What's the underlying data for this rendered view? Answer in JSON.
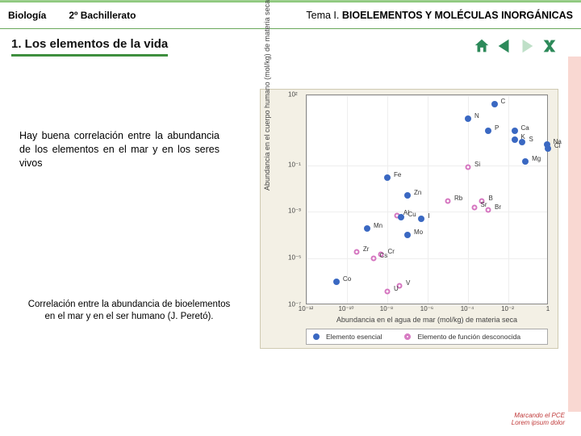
{
  "colors": {
    "accent": "#7bbf6a",
    "accent_dark": "#3e8f3e",
    "nav_icon": "#2d8a5a",
    "border_top": "#9ccf8d",
    "border_bottom": "#6aa85b",
    "pink": "#f9d8d2",
    "essential": "#3a68c2",
    "unknown": "#d576c0"
  },
  "header": {
    "subject": "Biología",
    "level": "2º Bachillerato",
    "topic_prefix": "Tema I. ",
    "topic_title": "BIOELEMENTOS Y MOLÉCULAS INORGÁNICAS"
  },
  "section_title": "1. Los elementos de la vida",
  "body_text": "Hay buena correlación entre la abundancia de los elementos en el mar y en los seres vivos",
  "caption": "Correlación entre la abundancia de bioelementos en el mar y en el ser humano (J. Peretó).",
  "footer": "Marcando el PCE\nLorem ipsum dolor",
  "chart": {
    "type": "scatter",
    "background": "#f3f0e5",
    "plot_bg": "#ffffff",
    "xlabel": "Abundancia en el agua de mar (mol/kg) de materia seca",
    "ylabel": "Abundancia en el cuerpo humano (mol/kg) de materia seca",
    "xlog": true,
    "ylog": true,
    "xlim": [
      1e-12,
      1
    ],
    "ylim": [
      1e-07,
      100
    ],
    "xticks": [
      "10⁻¹²",
      "10⁻¹⁰",
      "10⁻⁸",
      "10⁻⁶",
      "10⁻⁴",
      "10⁻²",
      "1"
    ],
    "yticks": [
      "10⁻⁷",
      "10⁻⁵",
      "10⁻³",
      "10⁻¹",
      "10²"
    ],
    "legend": {
      "essential": "Elemento esencial",
      "unknown": "Elemento de función desconocida"
    },
    "points": [
      {
        "el": "C",
        "x": 0.002,
        "y": 40,
        "cat": "essential"
      },
      {
        "el": "N",
        "x": 0.0001,
        "y": 10,
        "cat": "essential"
      },
      {
        "el": "Ca",
        "x": 0.02,
        "y": 3,
        "cat": "essential"
      },
      {
        "el": "P",
        "x": 0.001,
        "y": 3,
        "cat": "essential"
      },
      {
        "el": "S",
        "x": 0.05,
        "y": 1,
        "cat": "essential"
      },
      {
        "el": "K",
        "x": 0.02,
        "y": 1.2,
        "cat": "essential"
      },
      {
        "el": "Na",
        "x": 0.8,
        "y": 0.8,
        "cat": "essential"
      },
      {
        "el": "Cl",
        "x": 0.9,
        "y": 0.5,
        "cat": "essential"
      },
      {
        "el": "Mg",
        "x": 0.07,
        "y": 0.15,
        "cat": "essential"
      },
      {
        "el": "Si",
        "x": 0.0001,
        "y": 0.08,
        "cat": "unknown"
      },
      {
        "el": "Fe",
        "x": 1e-08,
        "y": 0.03,
        "cat": "essential"
      },
      {
        "el": "Zn",
        "x": 1e-07,
        "y": 0.005,
        "cat": "essential"
      },
      {
        "el": "Rb",
        "x": 1e-05,
        "y": 0.003,
        "cat": "unknown"
      },
      {
        "el": "B",
        "x": 0.0005,
        "y": 0.003,
        "cat": "unknown"
      },
      {
        "el": "Sr",
        "x": 0.0002,
        "y": 0.0015,
        "cat": "unknown"
      },
      {
        "el": "Br",
        "x": 0.001,
        "y": 0.0012,
        "cat": "unknown"
      },
      {
        "el": "Al",
        "x": 3e-08,
        "y": 0.0007,
        "cat": "unknown"
      },
      {
        "el": "Cu",
        "x": 5e-08,
        "y": 0.0006,
        "cat": "essential"
      },
      {
        "el": "I",
        "x": 5e-07,
        "y": 0.0005,
        "cat": "essential"
      },
      {
        "el": "Mn",
        "x": 1e-09,
        "y": 0.0002,
        "cat": "essential"
      },
      {
        "el": "Mo",
        "x": 1e-07,
        "y": 0.0001,
        "cat": "essential"
      },
      {
        "el": "Zr",
        "x": 3e-10,
        "y": 2e-05,
        "cat": "unknown"
      },
      {
        "el": "Cr",
        "x": 5e-09,
        "y": 1.5e-05,
        "cat": "unknown"
      },
      {
        "el": "Cs",
        "x": 2e-09,
        "y": 1e-05,
        "cat": "unknown"
      },
      {
        "el": "Co",
        "x": 3e-11,
        "y": 1e-06,
        "cat": "essential"
      },
      {
        "el": "V",
        "x": 4e-08,
        "y": 7e-07,
        "cat": "unknown"
      },
      {
        "el": "U",
        "x": 1e-08,
        "y": 4e-07,
        "cat": "unknown"
      }
    ]
  }
}
